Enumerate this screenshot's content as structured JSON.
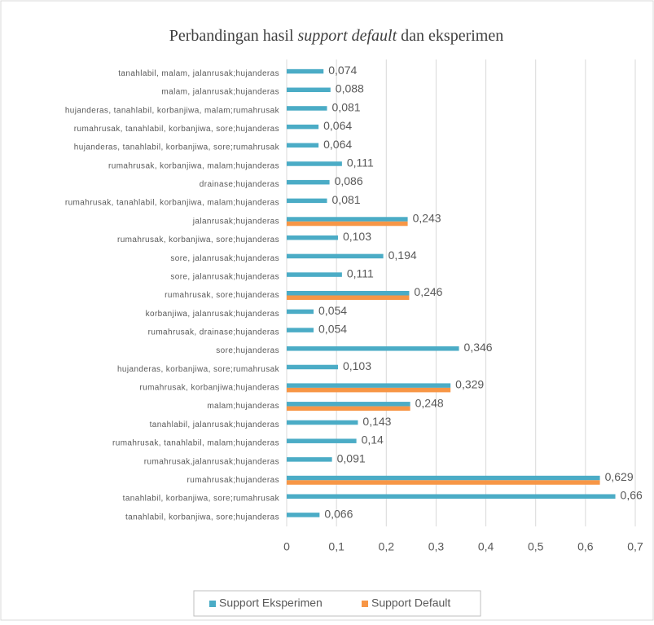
{
  "chart_data": {
    "type": "barh",
    "title": [
      "Perbandingan hasil ",
      "support default",
      " dan eksperimen"
    ],
    "title_italic": [
      false,
      true,
      false
    ],
    "categories": [
      "tanahlabil, malam, jalanrusak;hujanderas",
      "malam, jalanrusak;hujanderas",
      "hujanderas, tanahlabil, korbanjiwa, malam;rumahrusak",
      "rumahrusak, tanahlabil, korbanjiwa, sore;hujanderas",
      "hujanderas, tanahlabil, korbanjiwa, sore;rumahrusak",
      "rumahrusak, korbanjiwa, malam;hujanderas",
      "drainase;hujanderas",
      "rumahrusak, tanahlabil, korbanjiwa, malam;hujanderas",
      "jalanrusak;hujanderas",
      "rumahrusak, korbanjiwa, sore;hujanderas",
      "sore, jalanrusak;hujanderas",
      "sore, jalanrusak;hujanderas",
      "rumahrusak, sore;hujanderas",
      "korbanjiwa, jalanrusak;hujanderas",
      "rumahrusak, drainase;hujanderas",
      "sore;hujanderas",
      "hujanderas, korbanjiwa, sore;rumahrusak",
      "rumahrusak, korbanjiwa;hujanderas",
      "malam;hujanderas",
      "tanahlabil, jalanrusak;hujanderas",
      "rumahrusak, tanahlabil, malam;hujanderas",
      "rumahrusak,jalanrusak;hujanderas",
      "rumahrusak;hujanderas",
      "tanahlabil, korbanjiwa, sore;rumahrusak",
      "tanahlabil, korbanjiwa, sore;hujanderas"
    ],
    "series": [
      {
        "name": "Support Eksperimen",
        "color": "#4bacc6",
        "values": [
          0.074,
          0.088,
          0.081,
          0.064,
          0.064,
          0.111,
          0.086,
          0.081,
          0.243,
          0.103,
          0.194,
          0.111,
          0.246,
          0.054,
          0.054,
          0.346,
          0.103,
          0.329,
          0.248,
          0.143,
          0.14,
          0.091,
          0.629,
          0.66,
          0.066
        ],
        "value_labels": [
          "0,074",
          "0,088",
          "0,081",
          "0,064",
          "0,064",
          "0,111",
          "0,086",
          "0,081",
          "0,243",
          "0,103",
          "0,194",
          "0,111",
          "0,246",
          "0,054",
          "0,054",
          "0,346",
          "0,103",
          "0,329",
          "0,248",
          "0,143",
          "0,14",
          "0,091",
          "0,629",
          "0,66",
          "0,066"
        ]
      },
      {
        "name": "Support Default",
        "color": "#f79646",
        "values": [
          null,
          null,
          null,
          null,
          null,
          null,
          null,
          null,
          0.243,
          null,
          null,
          null,
          0.246,
          null,
          null,
          null,
          null,
          0.329,
          0.248,
          null,
          null,
          null,
          0.629,
          null,
          null
        ]
      }
    ],
    "xlim": [
      0,
      0.7
    ],
    "xticks": [
      0,
      {
        "value": 0.1,
        "label": "0,1"
      },
      {
        "value": 0.2,
        "label": "0,2"
      },
      {
        "value": 0.3,
        "label": "0,3"
      },
      {
        "value": 0.4,
        "label": "0,4"
      },
      {
        "value": 0.5,
        "label": "0,5"
      },
      {
        "value": 0.6,
        "label": "0,6"
      },
      {
        "value": 0.7,
        "label": "0,7"
      }
    ],
    "grid": true,
    "legend": "bottom"
  }
}
